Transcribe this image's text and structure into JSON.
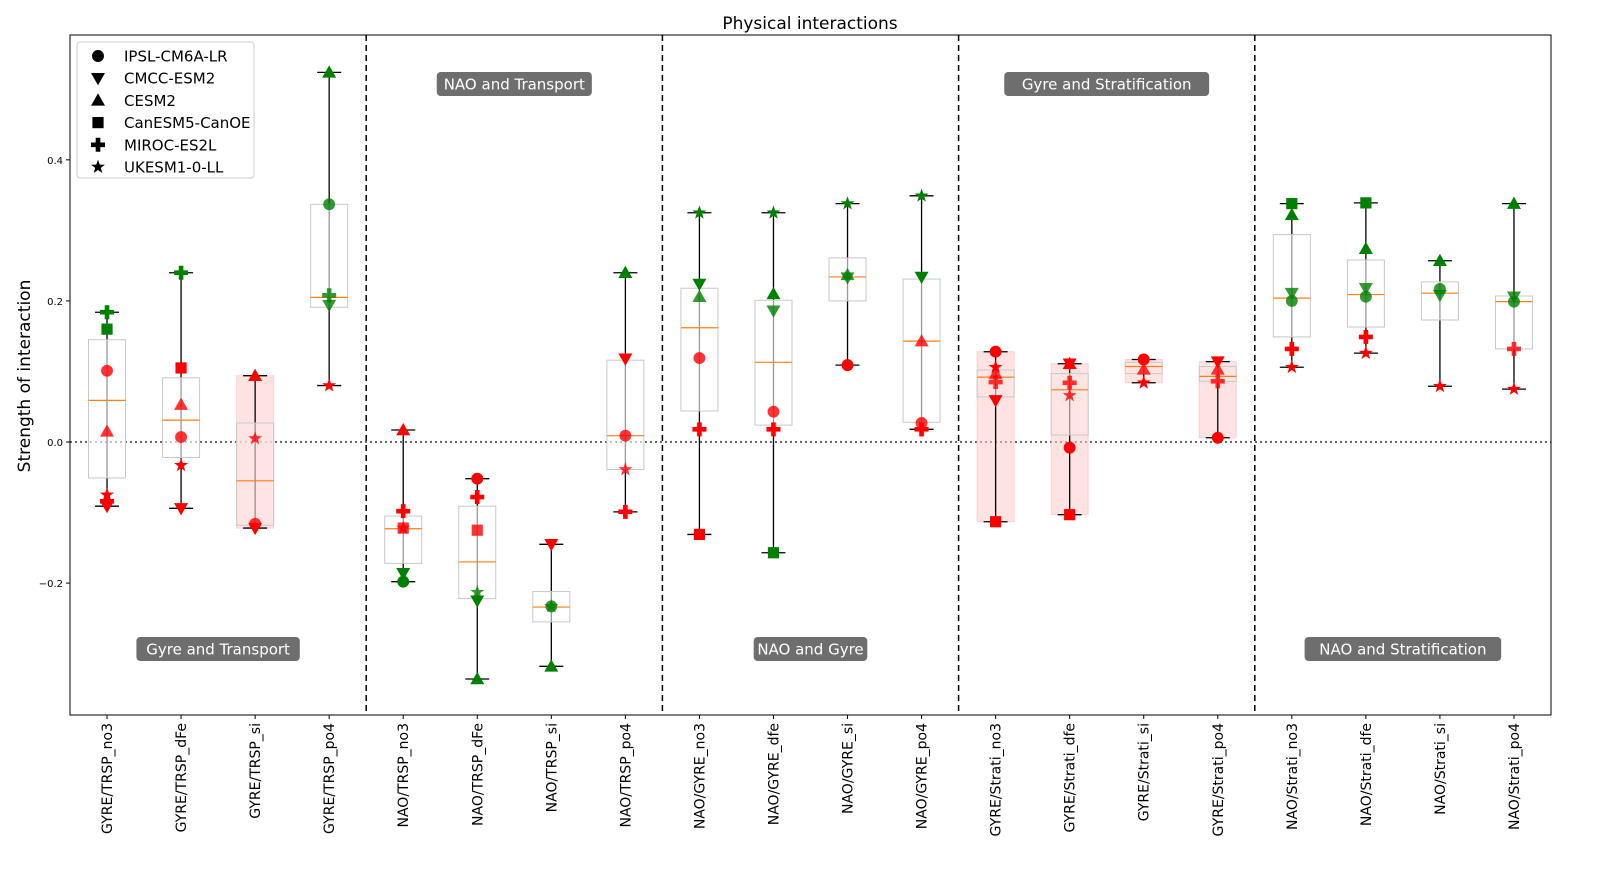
{
  "chart_data": {
    "type": "box+scatter",
    "title": "Physical interactions",
    "xlabel": "",
    "ylabel": "Strength of interaction",
    "ylim": [
      -0.387,
      0.577
    ],
    "yticks": [
      -0.2,
      0.0,
      0.2,
      0.4
    ],
    "ytick_labels": [
      "−0.2",
      "0.0",
      "0.2",
      "0.4"
    ],
    "legend_position": "top-left",
    "models": [
      "IPSL-CM6A-LR",
      "CMCC-ESM2",
      "CESM2",
      "CanESM5-CanOE",
      "MIROC-ES2L",
      "UKESM1-0-LL"
    ],
    "marker_shapes": [
      "circle",
      "triangle-down",
      "triangle-up",
      "square",
      "plus",
      "star"
    ],
    "colors": {
      "green": "#008000",
      "red": "#ff0000",
      "median": "#ff7f0e",
      "box": "#c8c8c8",
      "band": "#ffcccc",
      "section_label_bg": "#6e6e6e"
    },
    "sections": [
      {
        "label": "Gyre and Transport",
        "position": "bottom"
      },
      {
        "label": "NAO and Transport",
        "position": "top"
      },
      {
        "label": "NAO and Gyre",
        "position": "bottom"
      },
      {
        "label": "Gyre and Stratification",
        "position": "top"
      },
      {
        "label": "NAO and Stratification",
        "position": "bottom"
      }
    ],
    "categories": [
      {
        "name": "GYRE/TRSP_no3",
        "box": [
          -0.051,
          0.059,
          0.145
        ],
        "band": false,
        "points": [
          [
            0,
            0.101,
            "red"
          ],
          [
            1,
            -0.091,
            "red"
          ],
          [
            2,
            0.015,
            "red"
          ],
          [
            3,
            0.16,
            "green"
          ],
          [
            4,
            0.184,
            "green"
          ],
          [
            4,
            -0.084,
            "red"
          ],
          [
            5,
            -0.075,
            "red"
          ]
        ]
      },
      {
        "name": "GYRE/TRSP_dFe",
        "box": [
          -0.022,
          0.031,
          0.091
        ],
        "band": false,
        "points": [
          [
            0,
            0.007,
            "red"
          ],
          [
            1,
            -0.094,
            "red"
          ],
          [
            2,
            0.053,
            "red"
          ],
          [
            3,
            0.105,
            "red"
          ],
          [
            4,
            0.24,
            "green"
          ],
          [
            5,
            -0.033,
            "red"
          ]
        ]
      },
      {
        "name": "GYRE/TRSP_si",
        "box": [
          -0.118,
          -0.055,
          0.027
        ],
        "band": true,
        "points": [
          [
            0,
            -0.116,
            "red"
          ],
          [
            1,
            -0.122,
            "red"
          ],
          [
            2,
            0.094,
            "red"
          ],
          [
            5,
            0.005,
            "red"
          ]
        ]
      },
      {
        "name": "GYRE/TRSP_po4",
        "box": [
          0.191,
          0.205,
          0.337
        ],
        "band": false,
        "points": [
          [
            0,
            0.337,
            "green"
          ],
          [
            1,
            0.194,
            "green"
          ],
          [
            2,
            0.524,
            "green"
          ],
          [
            4,
            0.208,
            "green"
          ],
          [
            5,
            0.08,
            "red"
          ]
        ]
      },
      {
        "name": "NAO/TRSP_no3",
        "box": [
          -0.172,
          -0.123,
          -0.105
        ],
        "band": false,
        "points": [
          [
            0,
            -0.198,
            "green"
          ],
          [
            1,
            -0.186,
            "green"
          ],
          [
            2,
            0.017,
            "red"
          ],
          [
            3,
            -0.122,
            "red"
          ],
          [
            4,
            -0.098,
            "red"
          ],
          [
            5,
            -0.122,
            "red"
          ]
        ]
      },
      {
        "name": "NAO/TRSP_dFe",
        "box": [
          -0.222,
          -0.17,
          -0.091
        ],
        "band": false,
        "points": [
          [
            0,
            -0.052,
            "red"
          ],
          [
            1,
            -0.225,
            "green"
          ],
          [
            2,
            -0.336,
            "green"
          ],
          [
            3,
            -0.125,
            "red"
          ],
          [
            4,
            -0.078,
            "red"
          ],
          [
            5,
            -0.213,
            "green"
          ]
        ]
      },
      {
        "name": "NAO/TRSP_si",
        "box": [
          -0.255,
          -0.234,
          -0.212
        ],
        "band": false,
        "points": [
          [
            0,
            -0.233,
            "green"
          ],
          [
            1,
            -0.145,
            "red"
          ],
          [
            2,
            -0.318,
            "green"
          ],
          [
            5,
            -0.233,
            "green"
          ]
        ]
      },
      {
        "name": "NAO/TRSP_po4",
        "box": [
          -0.039,
          0.009,
          0.116
        ],
        "band": false,
        "points": [
          [
            0,
            0.009,
            "red"
          ],
          [
            1,
            0.118,
            "red"
          ],
          [
            2,
            0.24,
            "green"
          ],
          [
            4,
            -0.099,
            "red"
          ],
          [
            5,
            -0.039,
            "red"
          ]
        ]
      },
      {
        "name": "NAO/GYRE_no3",
        "box": [
          0.044,
          0.162,
          0.218
        ],
        "band": false,
        "points": [
          [
            0,
            0.119,
            "red"
          ],
          [
            1,
            0.224,
            "green"
          ],
          [
            2,
            0.206,
            "green"
          ],
          [
            3,
            -0.131,
            "red"
          ],
          [
            4,
            0.018,
            "red"
          ],
          [
            5,
            0.325,
            "green"
          ]
        ]
      },
      {
        "name": "NAO/GYRE_dfe",
        "box": [
          0.024,
          0.113,
          0.201
        ],
        "band": false,
        "points": [
          [
            0,
            0.043,
            "red"
          ],
          [
            1,
            0.186,
            "green"
          ],
          [
            2,
            0.21,
            "green"
          ],
          [
            3,
            -0.157,
            "green"
          ],
          [
            4,
            0.018,
            "red"
          ],
          [
            5,
            0.325,
            "green"
          ]
        ]
      },
      {
        "name": "NAO/GYRE_si",
        "box": [
          0.2,
          0.234,
          0.261
        ],
        "band": false,
        "points": [
          [
            0,
            0.109,
            "red"
          ],
          [
            1,
            0.233,
            "green"
          ],
          [
            2,
            0.237,
            "green"
          ],
          [
            5,
            0.338,
            "green"
          ]
        ]
      },
      {
        "name": "NAO/GYRE_po4",
        "box": [
          0.028,
          0.143,
          0.231
        ],
        "band": false,
        "points": [
          [
            0,
            0.027,
            "red"
          ],
          [
            1,
            0.234,
            "green"
          ],
          [
            2,
            0.143,
            "red"
          ],
          [
            4,
            0.018,
            "red"
          ],
          [
            5,
            0.349,
            "green"
          ]
        ]
      },
      {
        "name": "GYRE/Strati_no3",
        "box": [
          0.064,
          0.092,
          0.102
        ],
        "band": true,
        "points": [
          [
            0,
            0.128,
            "red"
          ],
          [
            1,
            0.059,
            "red"
          ],
          [
            2,
            0.097,
            "red"
          ],
          [
            3,
            -0.113,
            "red"
          ],
          [
            4,
            0.085,
            "red"
          ],
          [
            5,
            0.106,
            "red"
          ]
        ]
      },
      {
        "name": "GYRE/Strati_dfe",
        "box": [
          0.01,
          0.074,
          0.097
        ],
        "band": true,
        "points": [
          [
            0,
            -0.008,
            "red"
          ],
          [
            1,
            0.111,
            "red"
          ],
          [
            2,
            0.111,
            "red"
          ],
          [
            3,
            -0.103,
            "red"
          ],
          [
            4,
            0.084,
            "red"
          ],
          [
            5,
            0.066,
            "red"
          ]
        ]
      },
      {
        "name": "GYRE/Strati_si",
        "box": [
          0.097,
          0.107,
          0.113
        ],
        "band": true,
        "points": [
          [
            0,
            0.117,
            "red"
          ],
          [
            2,
            0.103,
            "red"
          ],
          [
            5,
            0.084,
            "red"
          ]
        ]
      },
      {
        "name": "GYRE/Strati_po4",
        "box": [
          0.086,
          0.093,
          0.107
        ],
        "band": true,
        "points": [
          [
            0,
            0.006,
            "red"
          ],
          [
            1,
            0.114,
            "red"
          ],
          [
            2,
            0.103,
            "red"
          ],
          [
            4,
            0.086,
            "red"
          ]
        ]
      },
      {
        "name": "NAO/Strati_no3",
        "box": [
          0.149,
          0.204,
          0.294
        ],
        "band": false,
        "points": [
          [
            0,
            0.2,
            "green"
          ],
          [
            1,
            0.211,
            "green"
          ],
          [
            2,
            0.322,
            "green"
          ],
          [
            3,
            0.338,
            "green"
          ],
          [
            4,
            0.132,
            "red"
          ],
          [
            5,
            0.106,
            "red"
          ]
        ]
      },
      {
        "name": "NAO/Strati_dfe",
        "box": [
          0.163,
          0.209,
          0.258
        ],
        "band": false,
        "points": [
          [
            0,
            0.206,
            "green"
          ],
          [
            1,
            0.218,
            "green"
          ],
          [
            2,
            0.274,
            "green"
          ],
          [
            3,
            0.339,
            "green"
          ],
          [
            4,
            0.149,
            "red"
          ],
          [
            5,
            0.126,
            "red"
          ]
        ]
      },
      {
        "name": "NAO/Strati_si",
        "box": [
          0.173,
          0.211,
          0.227
        ],
        "band": false,
        "points": [
          [
            0,
            0.217,
            "green"
          ],
          [
            1,
            0.208,
            "green"
          ],
          [
            2,
            0.257,
            "green"
          ],
          [
            5,
            0.079,
            "red"
          ]
        ]
      },
      {
        "name": "NAO/Strati_po4",
        "box": [
          0.132,
          0.199,
          0.207
        ],
        "band": false,
        "points": [
          [
            0,
            0.199,
            "green"
          ],
          [
            1,
            0.206,
            "green"
          ],
          [
            2,
            0.338,
            "green"
          ],
          [
            4,
            0.132,
            "red"
          ],
          [
            5,
            0.075,
            "red"
          ]
        ]
      }
    ]
  }
}
